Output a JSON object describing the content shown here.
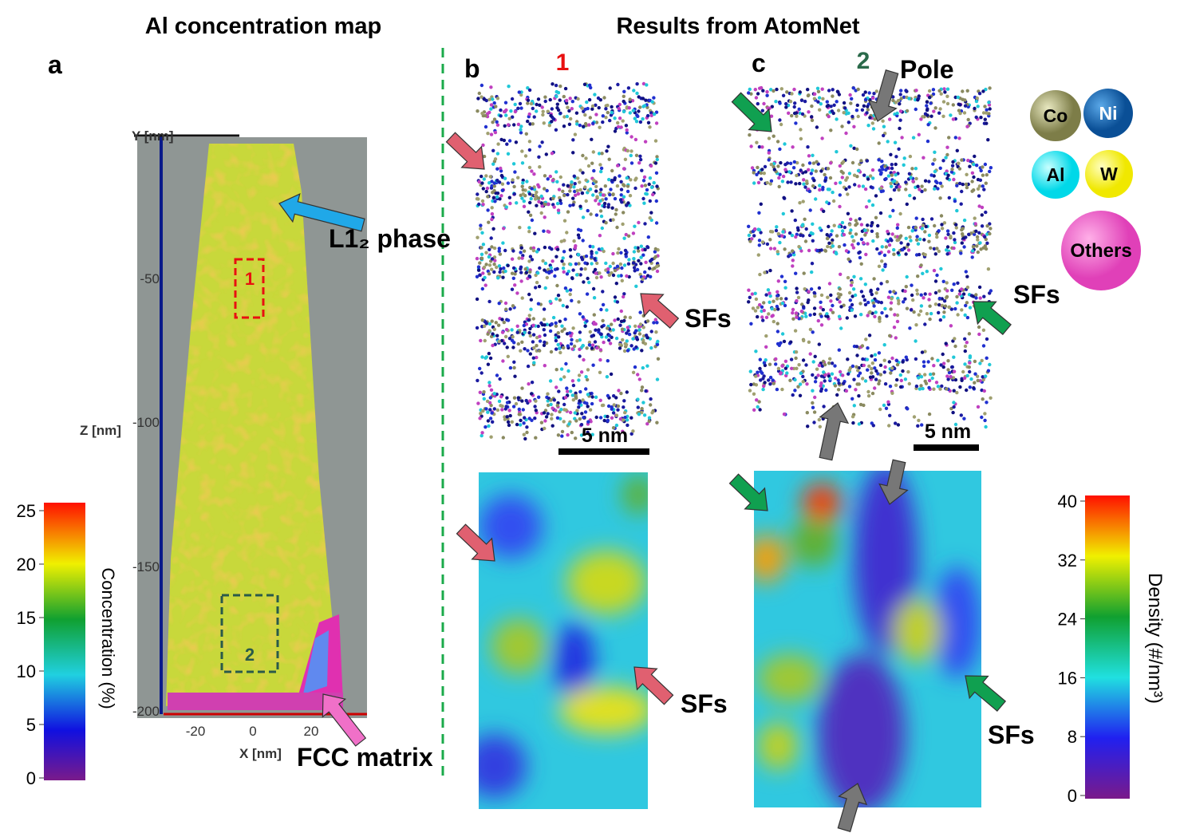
{
  "headers": {
    "left": "Al concentration map",
    "right": "Results from AtomNet"
  },
  "panels": {
    "a": "a",
    "b": "b",
    "c": "c"
  },
  "panel_a": {
    "y_axis_label": "Y [nm]",
    "z_axis_label": "Z [nm]",
    "x_axis_label": "X [nm]",
    "z_ticks": [
      "-50",
      "-100",
      "-150",
      "-200"
    ],
    "x_ticks": [
      "-20",
      "0",
      "20"
    ],
    "regions": [
      "1",
      "2"
    ],
    "annotations": {
      "l12": "L1₂ phase",
      "fcc": "FCC matrix"
    }
  },
  "colorbar_left": {
    "label": "Concentration (%)",
    "ticks": [
      0,
      5,
      10,
      15,
      20,
      25
    ],
    "range": [
      0,
      25
    ]
  },
  "panel_b": {
    "marker": "1",
    "scale_bar": "5 nm",
    "annotations": [
      "SFs",
      "SFs"
    ]
  },
  "panel_c": {
    "marker": "2",
    "pole": "Pole",
    "scale_bar": "5 nm",
    "annotations": [
      "SFs",
      "SFs"
    ]
  },
  "legend": [
    "Co",
    "Ni",
    "Al",
    "W",
    "Others"
  ],
  "colorbar_right": {
    "label": "Density (#/nm³)",
    "ticks": [
      0,
      8,
      16,
      24,
      32,
      40
    ],
    "range": [
      0,
      40
    ]
  }
}
